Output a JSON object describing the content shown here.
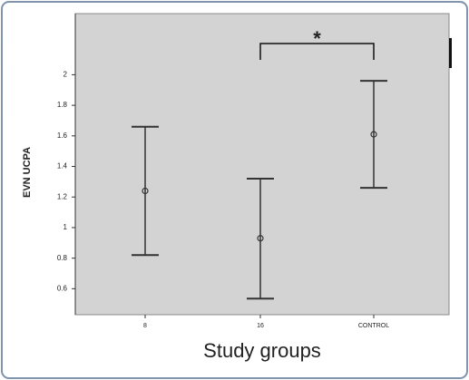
{
  "chart_data": {
    "type": "errorbar",
    "y_label": "EVN UCPA",
    "x_label": "Study groups",
    "categories": [
      "8",
      "16",
      "CONTROL"
    ],
    "values": [
      1.24,
      0.93,
      1.61
    ],
    "lower": [
      0.82,
      0.535,
      1.26
    ],
    "upper": [
      1.66,
      1.32,
      1.96
    ],
    "ylim": [
      0.43,
      2.4
    ],
    "yticks": [
      0.6,
      0.8,
      1,
      1.2,
      1.4,
      1.6,
      1.8,
      2
    ],
    "annotation": "*",
    "color": "#333333",
    "background": "#d3d3d3"
  }
}
